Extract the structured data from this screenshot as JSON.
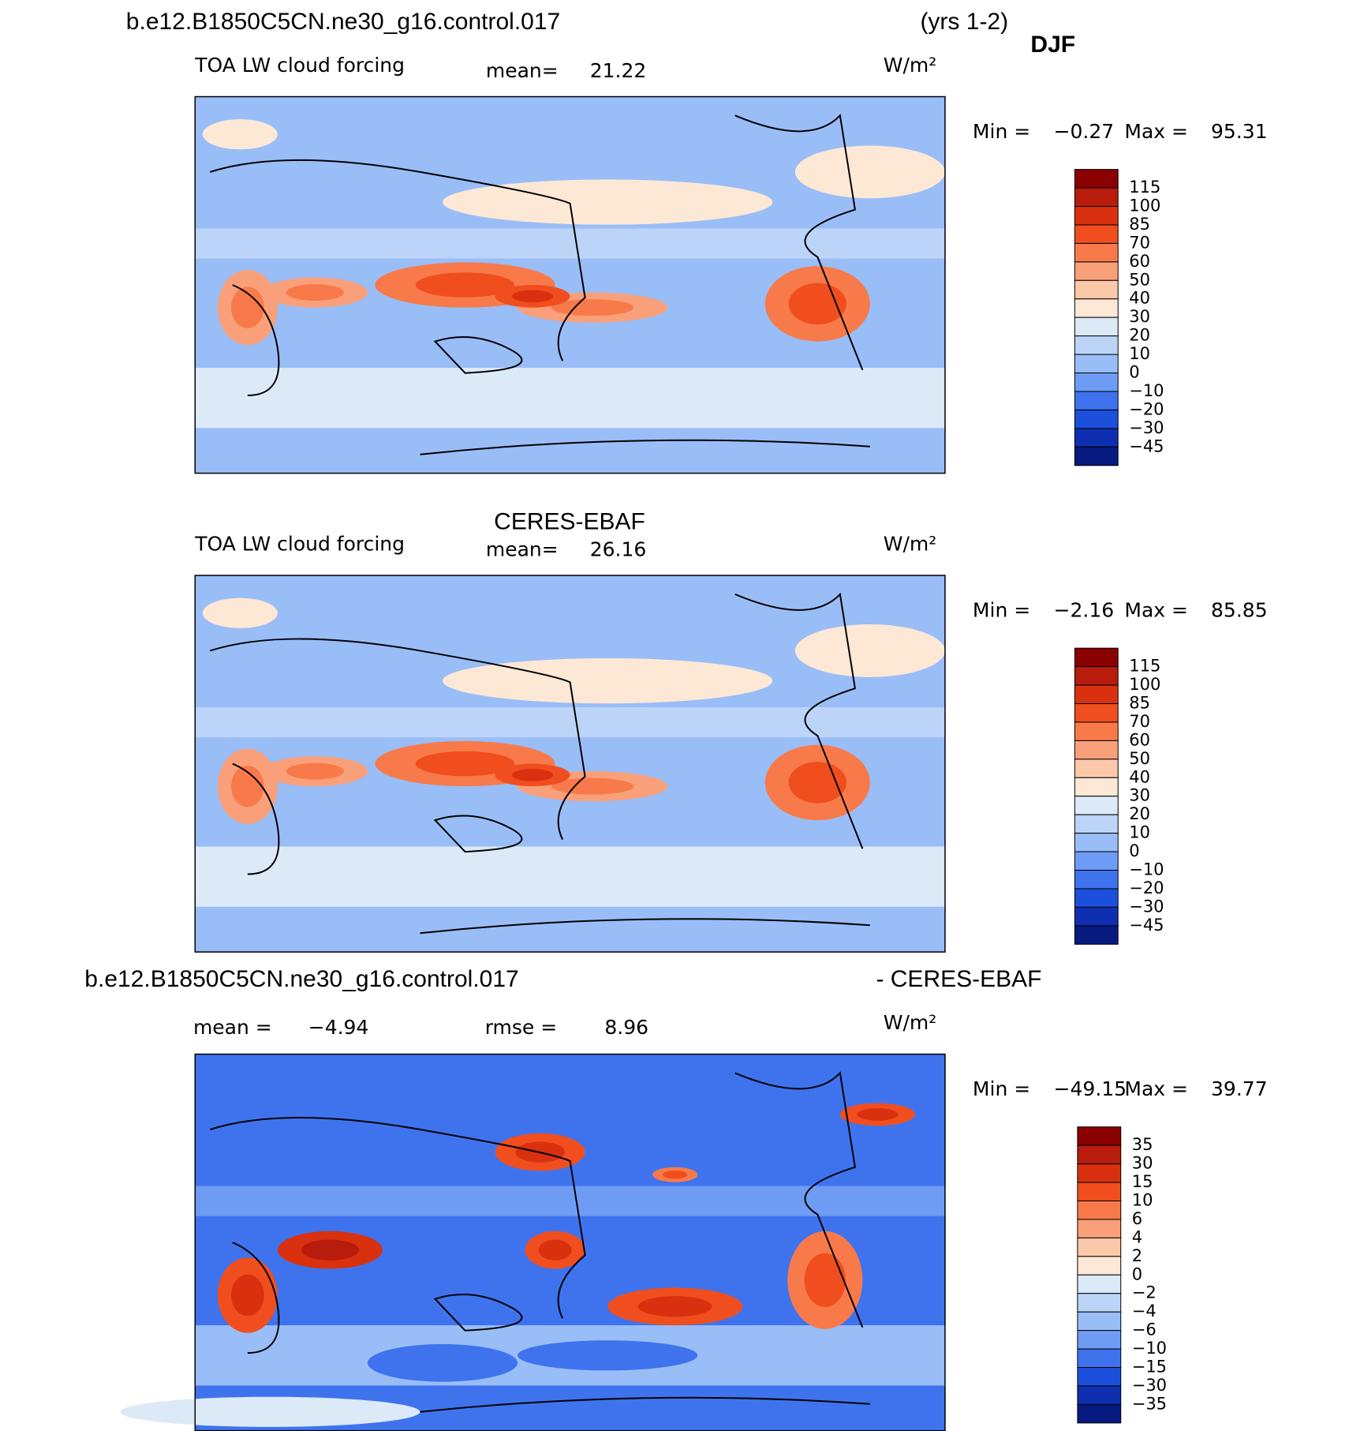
{
  "header": {
    "case": "b.e12.B1850C5CN.ne30_g16.control.017",
    "years": "(yrs 1-2)",
    "season": "DJF"
  },
  "palettes": {
    "field": [
      "#8b0000",
      "#b71c0c",
      "#d9310f",
      "#f04e1e",
      "#f87a4a",
      "#f9a07a",
      "#fbc8aa",
      "#fde8d6",
      "#dceaf8",
      "#bcd4f7",
      "#99bdf7",
      "#6e9cf5",
      "#3f73ee",
      "#1c4fdc",
      "#0d2fb0",
      "#061a80"
    ],
    "diff": [
      "#8b0000",
      "#b71c0c",
      "#d9310f",
      "#f04e1e",
      "#f87a4a",
      "#f9a07a",
      "#fbc8aa",
      "#fde8d6",
      "#dceaf8",
      "#bcd4f7",
      "#99bdf7",
      "#6e9cf5",
      "#3f73ee",
      "#1c4fdc",
      "#0d2fb0",
      "#061a80"
    ]
  },
  "panels": [
    {
      "variable": "TOA LW cloud forcing",
      "mean_label": "mean=",
      "mean": "21.22",
      "units": "W/m²",
      "min_label": "Min =",
      "min": "−0.27",
      "max_label": "Max =",
      "max": "95.31",
      "levels": [
        "115",
        "100",
        "85",
        "70",
        "60",
        "50",
        "40",
        "30",
        "20",
        "10",
        "0",
        "−10",
        "−20",
        "−30",
        "−45"
      ]
    },
    {
      "title": "CERES-EBAF",
      "variable": "TOA LW cloud forcing",
      "mean_label": "mean=",
      "mean": "26.16",
      "units": "W/m²",
      "min_label": "Min =",
      "min": "−2.16",
      "max_label": "Max =",
      "max": "85.85",
      "levels": [
        "115",
        "100",
        "85",
        "70",
        "60",
        "50",
        "40",
        "30",
        "20",
        "10",
        "0",
        "−10",
        "−20",
        "−30",
        "−45"
      ]
    },
    {
      "title_left": "b.e12.B1850C5CN.ne30_g16.control.017",
      "title_right": "- CERES-EBAF",
      "mean_label": "mean =",
      "mean": "−4.94",
      "rmse_label": "rmse =",
      "rmse": "8.96",
      "units": "W/m²",
      "min_label": "Min =",
      "min": "−49.15",
      "max_label": "Max =",
      "max": "39.77",
      "levels": [
        "35",
        "30",
        "15",
        "10",
        "6",
        "4",
        "2",
        "0",
        "−2",
        "−4",
        "−6",
        "−10",
        "−15",
        "−30",
        "−35"
      ]
    }
  ]
}
